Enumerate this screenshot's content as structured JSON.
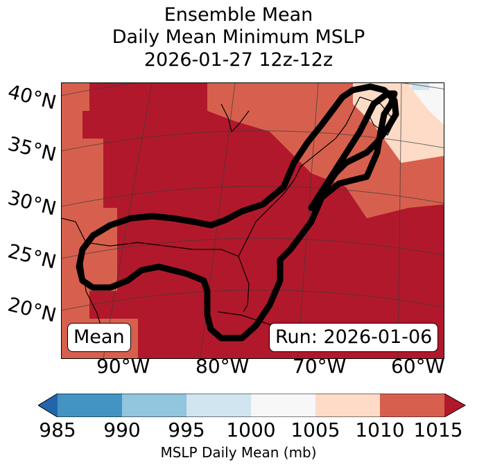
{
  "title": {
    "line1": "Ensemble Mean",
    "line2": "Daily Mean Minimum MSLP",
    "line3": "2026-01-27 12z-12z"
  },
  "map": {
    "lat_labels": [
      "40°N",
      "35°N",
      "30°N",
      "25°N",
      "20°N"
    ],
    "lon_labels": [
      "90°W",
      "80°W",
      "70°W",
      "60°W"
    ],
    "mean_label": "Mean",
    "run_label": "Run: 2026-01-06"
  },
  "colorbar": {
    "ticks": [
      "985",
      "990",
      "995",
      "1000",
      "1005",
      "1010",
      "1015"
    ],
    "label": "MSLP Daily Mean (mb)",
    "colors": [
      "#2166ac",
      "#4393c3",
      "#92c5de",
      "#d1e5f0",
      "#f7f7f7",
      "#fddbc7",
      "#d6604d",
      "#b2182b"
    ]
  },
  "colors": {
    "dark_red": "#b2182b",
    "mid_red": "#d6604d",
    "peach": "#fddbc7",
    "white": "#f7f7f7"
  }
}
